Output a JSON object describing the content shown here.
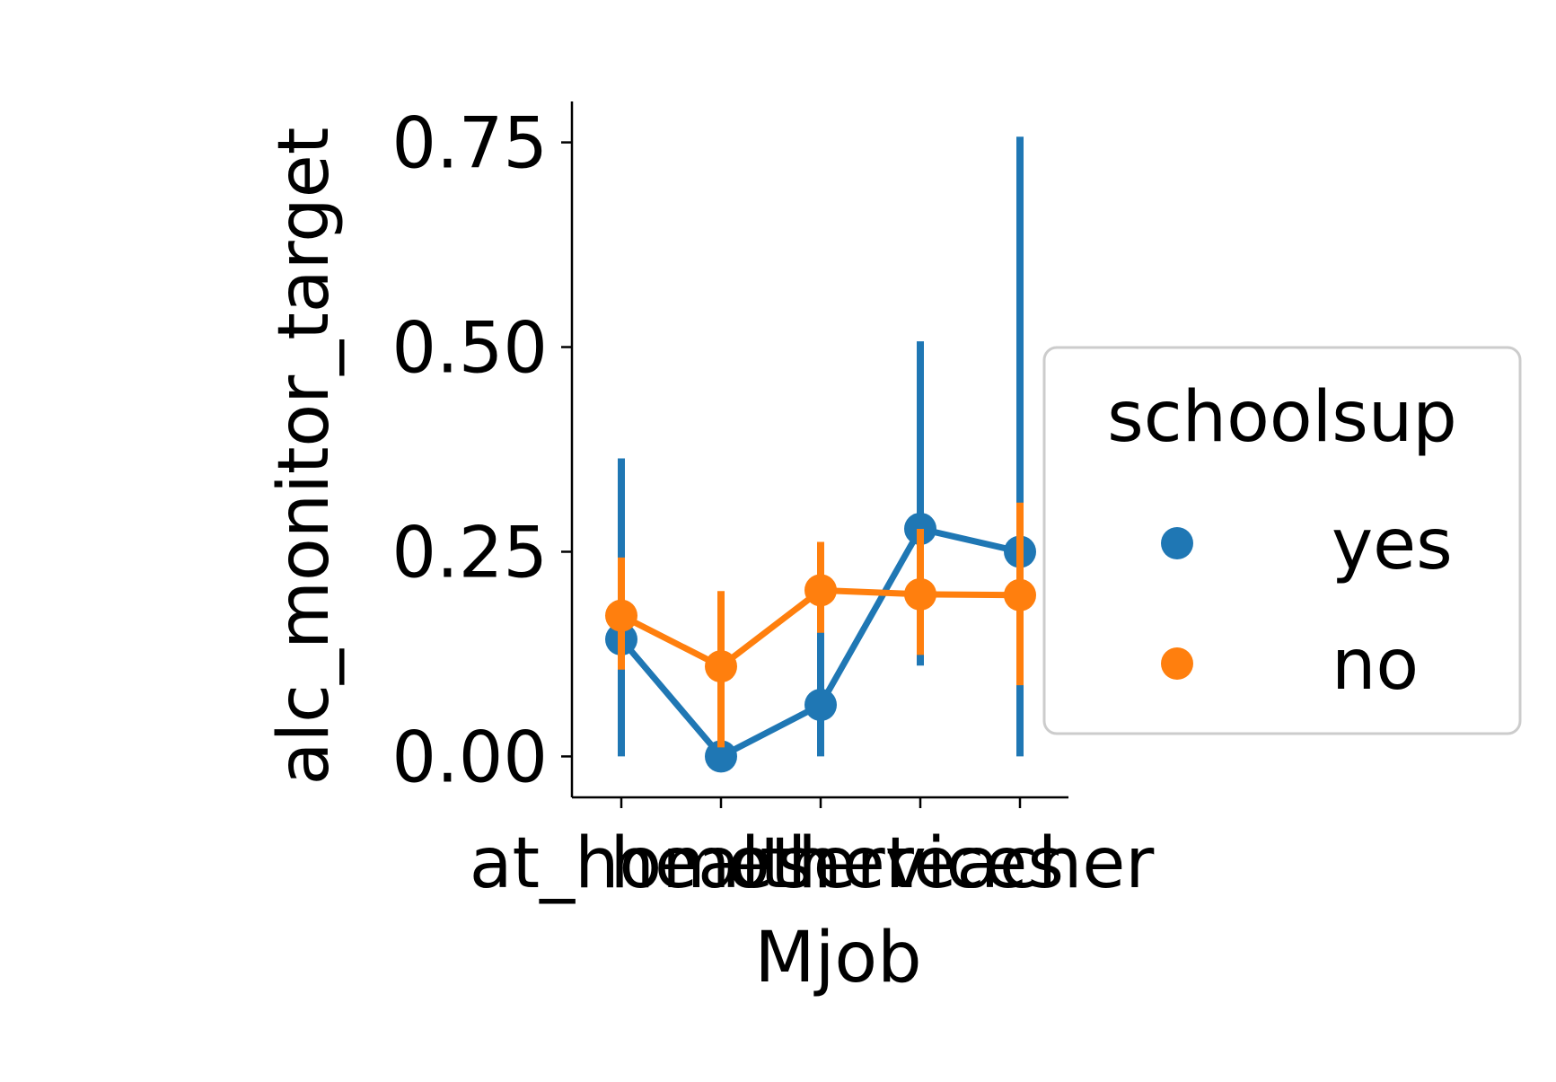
{
  "chart_data": {
    "type": "line",
    "title": "",
    "xlabel": "Mjob",
    "ylabel": "alc_monitor_target",
    "categories": [
      "at_home",
      "health",
      "other",
      "services",
      "teacher"
    ],
    "yticks": [
      "0.00",
      "0.25",
      "0.50",
      "0.75"
    ],
    "ytick_values": [
      0.0,
      0.25,
      0.5,
      0.75
    ],
    "ylim": [
      -0.05,
      0.8
    ],
    "grid": false,
    "legend": {
      "title": "schoolsup",
      "placement": "right-outside",
      "entries": [
        "yes",
        "no"
      ]
    },
    "series": [
      {
        "name": "yes",
        "color": "#1f77b4",
        "values": [
          0.143,
          0.0,
          0.063,
          0.278,
          0.25
        ],
        "ci_low": [
          0.0,
          0.0,
          0.0,
          0.111,
          0.0
        ],
        "ci_high": [
          0.364,
          0.0,
          0.182,
          0.507,
          0.757
        ]
      },
      {
        "name": "no",
        "color": "#ff7f0e",
        "values": [
          0.172,
          0.11,
          0.203,
          0.198,
          0.197
        ],
        "ci_low": [
          0.106,
          0.011,
          0.151,
          0.124,
          0.087
        ],
        "ci_high": [
          0.243,
          0.202,
          0.262,
          0.278,
          0.31
        ]
      }
    ]
  }
}
